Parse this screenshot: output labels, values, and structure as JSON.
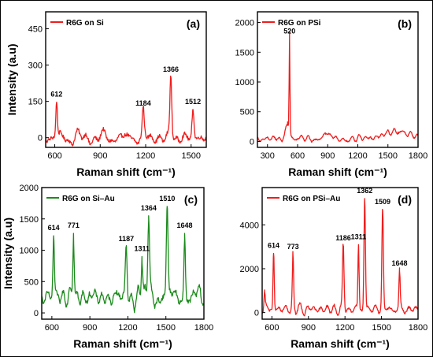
{
  "chart_data": [
    {
      "type": "line",
      "panel_label": "(a)",
      "legend": "R6G on Si",
      "legend_position": "top-left",
      "xlabel": "Raman shift (cm⁻¹)",
      "ylabel": "Intensity (a.u)",
      "xlim": [
        540,
        1600
      ],
      "ylim": [
        -40,
        520
      ],
      "xticks": [
        600,
        900,
        1200,
        1500
      ],
      "yticks": [
        0,
        150,
        300,
        450
      ],
      "color": "#f01c1c",
      "grid": false,
      "baseline": 0,
      "noise": 30,
      "peaks": [
        {
          "x": 612,
          "y": 147,
          "w": 5,
          "label": "612"
        },
        {
          "x": 1184,
          "y": 110,
          "w": 6,
          "label": "1184"
        },
        {
          "x": 1366,
          "y": 250,
          "w": 6,
          "label": "1366"
        },
        {
          "x": 1512,
          "y": 117,
          "w": 6,
          "label": "1512"
        }
      ]
    },
    {
      "type": "line",
      "panel_label": "(b)",
      "legend": "R6G on PSi",
      "legend_position": "top-left",
      "xlabel": "Raman shift (cm⁻¹)",
      "ylabel": "",
      "xlim": [
        200,
        1800
      ],
      "ylim": [
        -100,
        2180
      ],
      "xticks": [
        300,
        600,
        900,
        1200,
        1500,
        1800
      ],
      "yticks": [
        0,
        500,
        1000,
        1500,
        2000
      ],
      "color": "#f01c1c",
      "grid": false,
      "baseline": 40,
      "noise": 45,
      "peaks": [
        {
          "x": 520,
          "y": 1720,
          "w": 4,
          "label": "520"
        },
        {
          "x": 500,
          "y": 330,
          "w": 18,
          "label": ""
        },
        {
          "x": 880,
          "y": 120,
          "w": 40,
          "label": ""
        },
        {
          "x": 1600,
          "y": 160,
          "w": 150,
          "label": ""
        }
      ]
    },
    {
      "type": "line",
      "panel_label": "(c)",
      "legend": "R6G on Si–Au",
      "legend_position": "top-left",
      "xlabel": "Raman shift (cm⁻¹)",
      "ylabel": "Intensity (a.u)",
      "xlim": [
        520,
        1800
      ],
      "ylim": [
        -100,
        2000
      ],
      "xticks": [
        600,
        900,
        1200,
        1500,
        1800
      ],
      "yticks": [
        0,
        500,
        1000,
        1500,
        2000
      ],
      "color": "#1b8a1b",
      "grid": false,
      "baseline": 250,
      "noise": 140,
      "peaks": [
        {
          "x": 614,
          "y": 1230,
          "w": 6,
          "label": "614"
        },
        {
          "x": 771,
          "y": 1270,
          "w": 6,
          "label": "771"
        },
        {
          "x": 1187,
          "y": 1060,
          "w": 7,
          "label": "1187"
        },
        {
          "x": 1311,
          "y": 900,
          "w": 6,
          "label": "1311"
        },
        {
          "x": 1364,
          "y": 1550,
          "w": 7,
          "label": "1364"
        },
        {
          "x": 1510,
          "y": 1700,
          "w": 7,
          "label": "1510"
        },
        {
          "x": 1648,
          "y": 1270,
          "w": 6,
          "label": "1648"
        }
      ]
    },
    {
      "type": "line",
      "panel_label": "(d)",
      "legend": "R6G on PSi–Au",
      "legend_position": "top-left",
      "xlabel": "Raman shift (cm⁻¹)",
      "ylabel": "",
      "xlim": [
        520,
        1800
      ],
      "ylim": [
        -300,
        5700
      ],
      "xticks": [
        600,
        900,
        1200,
        1500,
        1800
      ],
      "yticks": [
        0,
        2000,
        4000
      ],
      "color": "#f01c1c",
      "grid": false,
      "baseline": 150,
      "noise": 200,
      "peaks": [
        {
          "x": 540,
          "y": 950,
          "w": 5,
          "label": ""
        },
        {
          "x": 614,
          "y": 2700,
          "w": 5,
          "label": "614"
        },
        {
          "x": 773,
          "y": 2650,
          "w": 5,
          "label": "773"
        },
        {
          "x": 1186,
          "y": 3050,
          "w": 6,
          "label": "1186"
        },
        {
          "x": 1311,
          "y": 3100,
          "w": 5,
          "label": "1311"
        },
        {
          "x": 1362,
          "y": 5200,
          "w": 6,
          "label": "1362"
        },
        {
          "x": 1509,
          "y": 4700,
          "w": 6,
          "label": "1509"
        },
        {
          "x": 1648,
          "y": 1900,
          "w": 5,
          "label": "1648"
        }
      ]
    }
  ]
}
